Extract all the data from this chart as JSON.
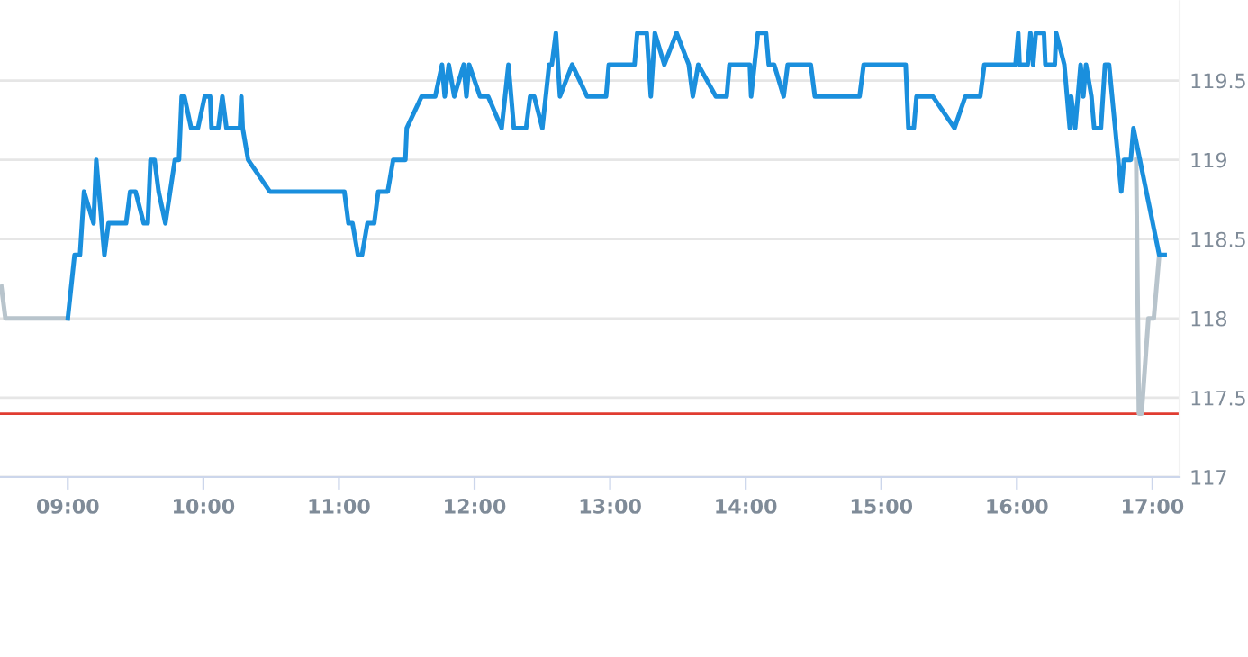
{
  "chart_data": {
    "type": "line",
    "xlim": [
      8.5,
      17.2
    ],
    "xticks": [
      {
        "value": 9,
        "label": "09:00"
      },
      {
        "value": 10,
        "label": "10:00"
      },
      {
        "value": 11,
        "label": "11:00"
      },
      {
        "value": 12,
        "label": "12:00"
      },
      {
        "value": 13,
        "label": "13:00"
      },
      {
        "value": 14,
        "label": "14:00"
      },
      {
        "value": 15,
        "label": "15:00"
      },
      {
        "value": 16,
        "label": "16:00"
      },
      {
        "value": 17,
        "label": "17:00"
      }
    ],
    "ylim": [
      117,
      120
    ],
    "yticks": [
      117,
      117.5,
      118,
      118.5,
      119,
      119.5
    ],
    "grid": "y",
    "marker": "none",
    "line_style": "solid",
    "ref_lines": [
      {
        "axis": "y",
        "value": 117.4,
        "color": "#e03c31"
      }
    ],
    "series": [
      {
        "color": "#b8c4cc",
        "x": [
          8.51,
          8.54,
          9.0,
          13.0,
          16.88,
          16.9,
          16.92,
          16.97,
          17.01,
          17.05
        ],
        "values": [
          118.2,
          118.0,
          118.0,
          null,
          119.0,
          117.4,
          117.4,
          118.0,
          118.0,
          118.4
        ]
      },
      {
        "color": "#1a8fdd",
        "x": [
          9.0,
          9.05,
          9.09,
          9.12,
          9.19,
          9.21,
          9.27,
          9.3,
          9.43,
          9.46,
          9.5,
          9.56,
          9.59,
          9.61,
          9.64,
          9.67,
          9.72,
          9.79,
          9.82,
          9.84,
          9.86,
          9.91,
          9.96,
          10.01,
          10.05,
          10.06,
          10.11,
          10.14,
          10.17,
          10.27,
          10.28,
          10.29,
          10.33,
          10.49,
          11.04,
          11.07,
          11.1,
          11.14,
          11.17,
          11.21,
          11.26,
          11.29,
          11.36,
          11.4,
          11.49,
          11.5,
          11.61,
          11.71,
          11.76,
          11.78,
          11.81,
          11.85,
          11.92,
          11.94,
          11.96,
          12.04,
          12.1,
          12.2,
          12.25,
          12.29,
          12.38,
          12.41,
          12.44,
          12.5,
          12.55,
          12.57,
          12.6,
          12.63,
          12.72,
          12.83,
          12.97,
          12.99,
          13.18,
          13.2,
          13.27,
          13.3,
          13.33,
          13.4,
          13.49,
          13.58,
          13.61,
          13.65,
          13.78,
          13.86,
          13.88,
          14.03,
          14.04,
          14.09,
          14.15,
          14.17,
          14.21,
          14.28,
          14.31,
          14.48,
          14.51,
          14.84,
          14.87,
          15.18,
          15.2,
          15.24,
          15.26,
          15.38,
          15.54,
          15.62,
          15.73,
          15.76,
          15.99,
          16.01,
          16.02,
          16.08,
          16.1,
          16.12,
          16.14,
          16.2,
          16.21,
          16.28,
          16.29,
          16.35,
          16.39,
          16.4,
          16.43,
          16.47,
          16.49,
          16.51,
          16.55,
          16.57,
          16.62,
          16.65,
          16.68,
          16.77,
          16.79,
          16.84,
          16.86,
          17.05,
          17.09
        ],
        "values": [
          118.0,
          118.4,
          118.4,
          118.8,
          118.6,
          119.0,
          118.4,
          118.6,
          118.6,
          118.8,
          118.8,
          118.6,
          118.6,
          119.0,
          119.0,
          118.8,
          118.6,
          119.0,
          119.0,
          119.4,
          119.4,
          119.2,
          119.2,
          119.4,
          119.4,
          119.2,
          119.2,
          119.4,
          119.2,
          119.2,
          119.4,
          119.2,
          119.0,
          118.8,
          118.8,
          118.6,
          118.6,
          118.4,
          118.4,
          118.6,
          118.6,
          118.8,
          118.8,
          119.0,
          119.0,
          119.2,
          119.4,
          119.4,
          119.6,
          119.4,
          119.6,
          119.4,
          119.6,
          119.4,
          119.6,
          119.4,
          119.4,
          119.2,
          119.6,
          119.2,
          119.2,
          119.4,
          119.4,
          119.2,
          119.6,
          119.6,
          119.8,
          119.4,
          119.6,
          119.4,
          119.4,
          119.6,
          119.6,
          119.8,
          119.8,
          119.4,
          119.8,
          119.6,
          119.8,
          119.6,
          119.4,
          119.6,
          119.4,
          119.4,
          119.6,
          119.6,
          119.4,
          119.8,
          119.8,
          119.6,
          119.6,
          119.4,
          119.6,
          119.6,
          119.4,
          119.4,
          119.6,
          119.6,
          119.2,
          119.2,
          119.4,
          119.4,
          119.2,
          119.4,
          119.4,
          119.6,
          119.6,
          119.8,
          119.6,
          119.6,
          119.8,
          119.6,
          119.8,
          119.8,
          119.6,
          119.6,
          119.8,
          119.6,
          119.2,
          119.4,
          119.2,
          119.6,
          119.4,
          119.6,
          119.4,
          119.2,
          119.2,
          119.6,
          119.6,
          118.8,
          119.0,
          119.0,
          119.2,
          118.4,
          118.4
        ]
      }
    ]
  }
}
